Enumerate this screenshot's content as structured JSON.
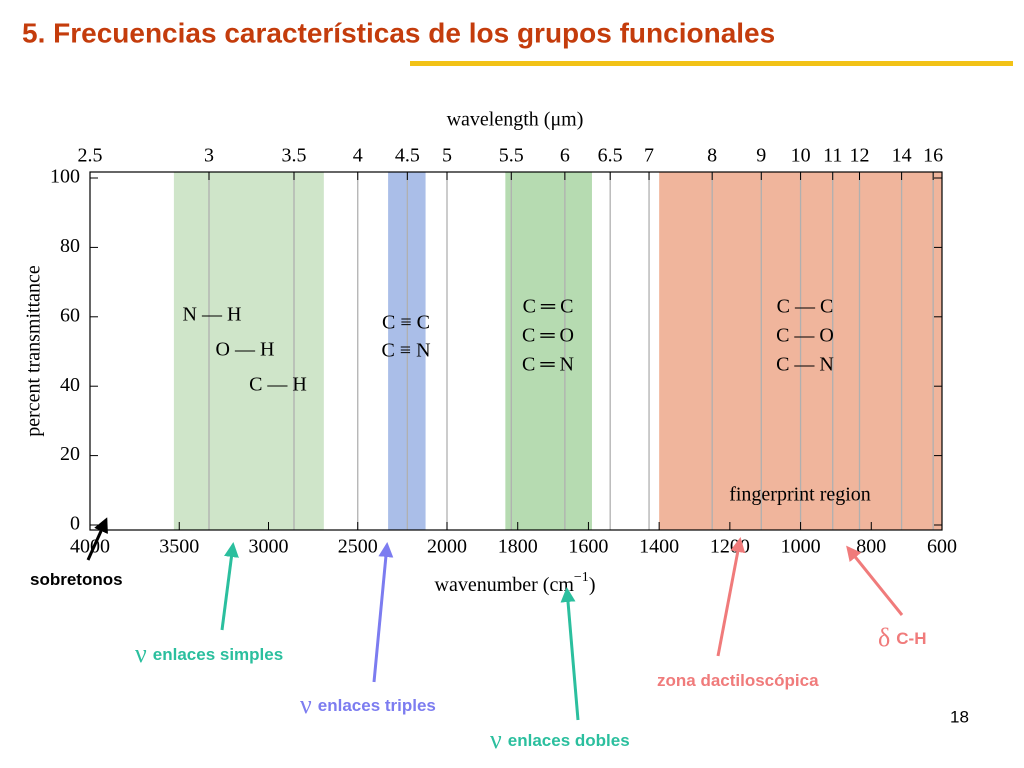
{
  "slide": {
    "title": "5.  Frecuencias características de los grupos funcionales",
    "page_number": "18",
    "callouts": [
      {
        "symbol": "",
        "text": "sobretonos",
        "color": "#000000"
      },
      {
        "symbol": "ν",
        "text": "enlaces simples",
        "color": "#2bbf9e"
      },
      {
        "symbol": "ν",
        "text": "enlaces triples",
        "color": "#7c7cf0"
      },
      {
        "symbol": "ν",
        "text": "enlaces dobles",
        "color": "#2bbf9e"
      },
      {
        "symbol": "",
        "text": "zona dactiloscópica",
        "color": "#f07b7b"
      },
      {
        "symbol": "δ",
        "text": "C-H",
        "color": "#f07b7b"
      }
    ]
  },
  "chart_data": {
    "type": "span",
    "xlabel": "wavenumber (cm",
    "xlabel_sup": "−1",
    "xlabel_end": ")",
    "x2label": "wavelength (μm)",
    "ylabel": "percent transmittance",
    "xlim": [
      4000,
      600
    ],
    "x_scale_break": 2000,
    "xticks": [
      4000,
      3500,
      3000,
      2500,
      2000,
      1800,
      1600,
      1400,
      1200,
      1000,
      800,
      600
    ],
    "x2ticks": [
      2.5,
      3,
      3.5,
      4,
      4.5,
      5,
      5.5,
      6,
      6.5,
      7,
      8,
      9,
      10,
      11,
      12,
      14,
      16
    ],
    "ylim": [
      0,
      100
    ],
    "yticks": [
      0,
      20,
      40,
      60,
      80,
      100
    ],
    "grid": true,
    "spans": [
      {
        "x": [
          3530,
          2690
        ],
        "color": "#cfe5c9",
        "labels": [
          "N — H",
          "O — H",
          "C — H"
        ]
      },
      {
        "x": [
          2330,
          2120
        ],
        "color": "#aabee8",
        "labels": [
          "C ≡ C",
          "C ≡ N"
        ]
      },
      {
        "x": [
          1835,
          1590
        ],
        "color": "#b6dbb1",
        "labels": [
          "C ═ C",
          "C ═ O",
          "C ═ N"
        ]
      },
      {
        "x": [
          1400,
          600
        ],
        "color": "#f0b59c",
        "labels": [
          "C — C",
          "C — O",
          "C — N"
        ],
        "annotation": "fingerprint region"
      }
    ]
  }
}
